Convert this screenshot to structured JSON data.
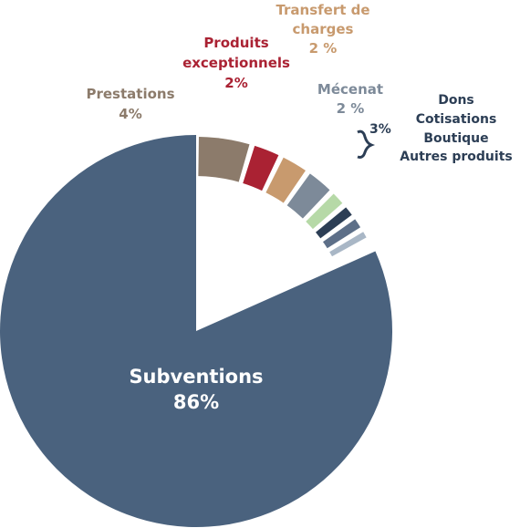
{
  "chart_data": {
    "type": "pie",
    "slices": [
      {
        "name": "Subventions",
        "label": "Subventions",
        "pct_label": "86%",
        "value": 86,
        "color": "#4a627e",
        "exploded": false
      },
      {
        "name": "Prestations",
        "label": "Prestations",
        "pct_label": "4%",
        "value": 4,
        "color": "#8c7b6b",
        "exploded": true
      },
      {
        "name": "Produits exceptionnels",
        "label_lines": [
          "Produits",
          "exceptionnels"
        ],
        "pct_label": "2%",
        "value": 2,
        "color": "#aa2233",
        "exploded": true
      },
      {
        "name": "Transfert de charges",
        "label_lines": [
          "Transfert de",
          "charges"
        ],
        "pct_label": "2 %",
        "value": 2,
        "color": "#c89a6e",
        "exploded": true
      },
      {
        "name": "Mécenat",
        "label": "Mécenat",
        "pct_label": "2 %",
        "value": 2,
        "color": "#7d8a99",
        "exploded": true
      },
      {
        "name": "Dons",
        "label": "Dons",
        "value": 1,
        "color": "#b6d9a7",
        "exploded": true
      },
      {
        "name": "Cotisations",
        "label": "Cotisations",
        "value": 0.75,
        "color": "#2c3e55",
        "exploded": true
      },
      {
        "name": "Boutique",
        "label": "Boutique",
        "value": 0.75,
        "color": "#5d6f88",
        "exploded": true
      },
      {
        "name": "Autres produits",
        "label": "Autres produits",
        "value": 0.5,
        "color": "#a9b7c6",
        "exploded": true
      }
    ],
    "group_label": "3%",
    "group_members": [
      "Dons",
      "Cotisations",
      "Boutique",
      "Autres produits"
    ]
  }
}
